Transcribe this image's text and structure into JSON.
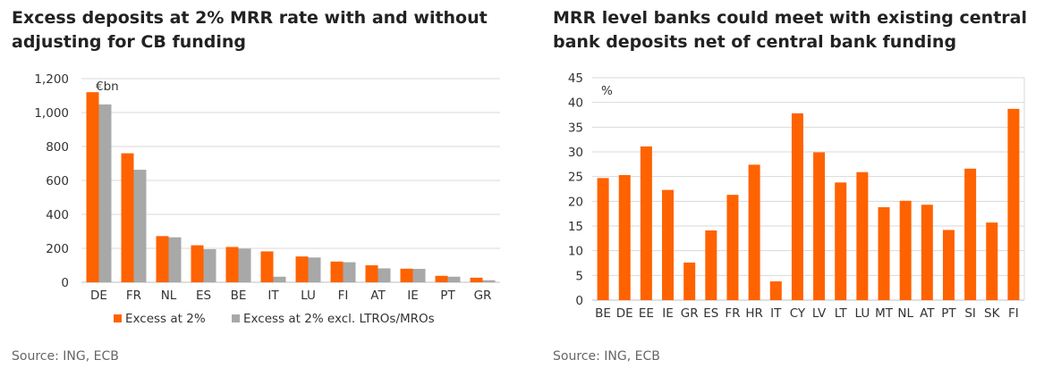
{
  "charts": [
    {
      "title": "Excess deposits at 2% MRR rate with and without adjusting for CB funding",
      "source": "Source: ING, ECB"
    },
    {
      "title": "MRR level banks could meet with existing central bank deposits net of central bank funding",
      "source": "Source: ING, ECB"
    }
  ],
  "chart_data": [
    {
      "type": "bar",
      "title": "Excess deposits at 2% MRR rate with and without adjusting for CB funding",
      "unit_label": "€bn",
      "categories": [
        "DE",
        "FR",
        "NL",
        "ES",
        "BE",
        "IT",
        "LU",
        "FI",
        "AT",
        "IE",
        "PT",
        "GR"
      ],
      "series": [
        {
          "name": "Excess at 2%",
          "color": "#ff6200",
          "values": [
            1120,
            760,
            272,
            218,
            208,
            182,
            152,
            122,
            100,
            80,
            38,
            27
          ]
        },
        {
          "name": "Excess at 2% excl. LTROs/MROs",
          "color": "#a8a8a8",
          "values": [
            1048,
            663,
            265,
            195,
            198,
            33,
            146,
            118,
            82,
            79,
            33,
            12
          ]
        }
      ],
      "yticks": [
        "0",
        "200",
        "400",
        "600",
        "800",
        "1,000",
        "1,200"
      ],
      "ylim": [
        0,
        1200
      ],
      "legend": "bottom",
      "grid": true
    },
    {
      "type": "bar",
      "title": "MRR level banks could meet with existing central bank deposits net of central bank funding",
      "unit_label": "%",
      "categories": [
        "BE",
        "DE",
        "EE",
        "IE",
        "GR",
        "ES",
        "FR",
        "HR",
        "IT",
        "CY",
        "LV",
        "LT",
        "LU",
        "MT",
        "NL",
        "AT",
        "PT",
        "SI",
        "SK",
        "FI"
      ],
      "series": [
        {
          "name": "MRR level",
          "color": "#ff6200",
          "values": [
            24.7,
            25.3,
            31.1,
            22.3,
            7.6,
            14.1,
            21.3,
            27.4,
            3.8,
            37.8,
            29.9,
            23.8,
            25.9,
            18.8,
            20.1,
            19.3,
            14.2,
            26.6,
            15.7,
            38.7
          ]
        }
      ],
      "yticks": [
        "0",
        "5",
        "10",
        "15",
        "20",
        "25",
        "30",
        "35",
        "40",
        "45"
      ],
      "ylim": [
        0,
        45
      ],
      "grid": true
    }
  ]
}
